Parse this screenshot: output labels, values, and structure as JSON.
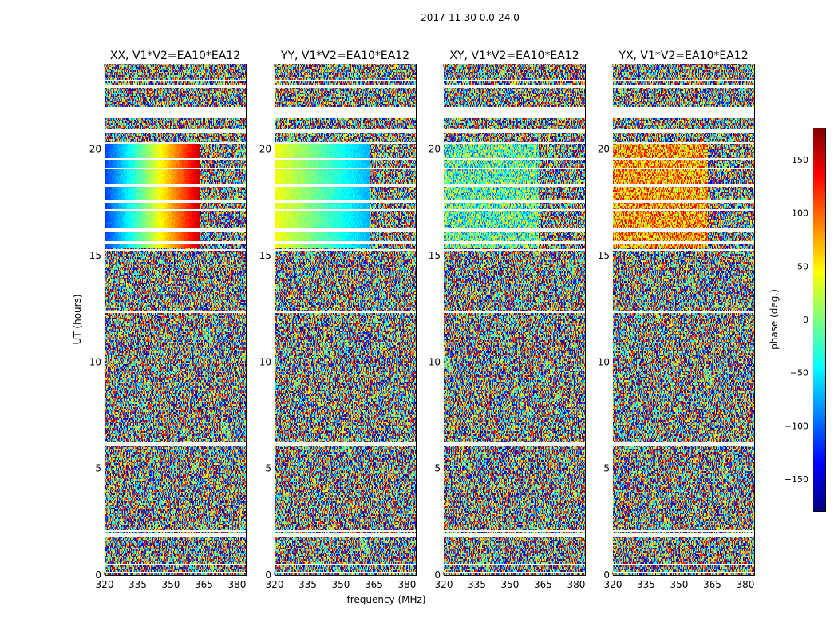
{
  "figure": {
    "suptitle": "2017-11-30 0.0-24.0",
    "xlabel": "frequency (MHz)",
    "ylabel": "UT (hours)"
  },
  "chart_data": {
    "type": "heatmap",
    "x_ticks": [
      320,
      335,
      350,
      365,
      380
    ],
    "xlim": [
      320,
      384
    ],
    "y_ticks": [
      0,
      5,
      10,
      15,
      20
    ],
    "ylim": [
      0,
      24
    ],
    "panels": [
      {
        "title": "XX, V1*V2=EA10*EA12"
      },
      {
        "title": "YY, V1*V2=EA10*EA12"
      },
      {
        "title": "XY, V1*V2=EA10*EA12"
      },
      {
        "title": "YX, V1*V2=EA10*EA12"
      }
    ],
    "colorbar": {
      "label": "phase (deg.)",
      "colormap": "jet",
      "range": [
        -180,
        180
      ],
      "ticks": [
        150,
        100,
        50,
        0,
        -50,
        -100,
        -150
      ],
      "tick_labels": [
        "150",
        "100",
        "50",
        "0",
        "−50",
        "−100",
        "−150"
      ]
    },
    "flagged_ut_bands": [
      [
        0.05,
        0.15
      ],
      [
        0.42,
        0.55
      ],
      [
        1.78,
        1.95
      ],
      [
        2.05,
        2.1
      ],
      [
        6.1,
        6.2
      ],
      [
        12.3,
        12.4
      ],
      [
        15.2,
        15.3
      ],
      [
        15.5,
        15.65
      ],
      [
        16.15,
        16.3
      ],
      [
        17.1,
        17.2
      ],
      [
        17.45,
        17.65
      ],
      [
        18.2,
        18.35
      ],
      [
        19.05,
        19.15
      ],
      [
        19.5,
        19.6
      ],
      [
        20.25,
        20.3
      ],
      [
        20.75,
        20.95
      ],
      [
        21.45,
        21.95
      ],
      [
        22.9,
        23.0
      ],
      [
        23.2,
        23.25
      ]
    ],
    "coherent_phase_ut_range": [
      15.4,
      20.3
    ]
  },
  "colors": {
    "axes_edge": "#000000",
    "background": "#ffffff"
  }
}
